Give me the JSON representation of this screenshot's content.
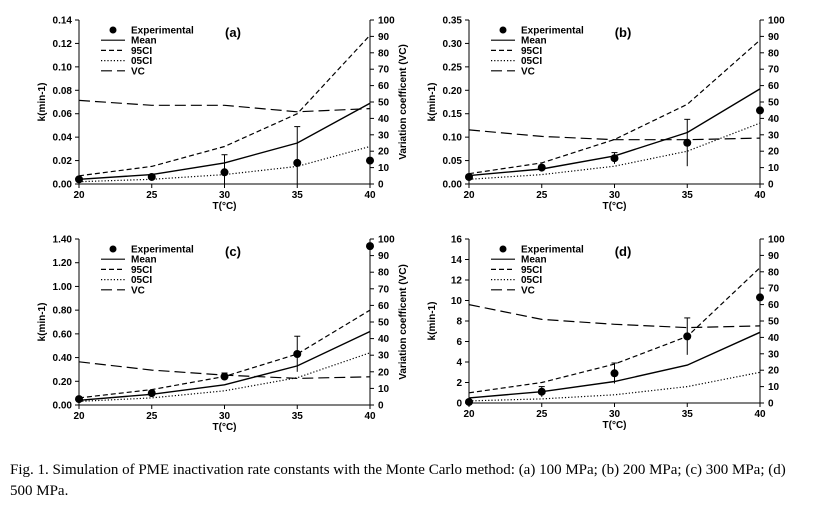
{
  "caption": "Fig. 1. Simulation of PME inactivation rate constants with the Monte Carlo method: (a) 100 MPa; (b) 200 MPa; (c) 300 MPa; (d) 500 MPa.",
  "legend_labels": [
    "Experimental",
    "Mean",
    "95CI",
    "05CI",
    "VC"
  ],
  "chart_data": [
    {
      "type": "line",
      "panel_label": "(a)",
      "xlabel": "T(°C)",
      "ylabel": "k(min-1)",
      "y2label": "Variation coefficent (VC)",
      "x": [
        20,
        25,
        30,
        35,
        40
      ],
      "xlim": [
        20,
        40
      ],
      "ylim": [
        0,
        0.14
      ],
      "y2lim": [
        0,
        100
      ],
      "yticks": [
        "0.00",
        "0.02",
        "0.04",
        "0.06",
        "0.08",
        "0.10",
        "0.12",
        "0.14"
      ],
      "y2ticks": [
        "0",
        "10",
        "20",
        "30",
        "40",
        "50",
        "60",
        "70",
        "80",
        "90",
        "100"
      ],
      "series": [
        {
          "name": "Experimental",
          "axis": "left",
          "style": "points",
          "values": [
            0.004,
            0.006,
            0.01,
            0.018,
            0.02
          ],
          "errors": [
            0.001,
            0.002,
            0.015,
            0.031,
            0.0
          ]
        },
        {
          "name": "Mean",
          "axis": "left",
          "style": "solid",
          "values": [
            0.004,
            0.008,
            0.018,
            0.035,
            0.069
          ]
        },
        {
          "name": "95CI",
          "axis": "left",
          "style": "dashed",
          "values": [
            0.007,
            0.015,
            0.032,
            0.06,
            0.127
          ]
        },
        {
          "name": "05CI",
          "axis": "left",
          "style": "dotted",
          "values": [
            0.002,
            0.004,
            0.008,
            0.015,
            0.032
          ]
        },
        {
          "name": "VC",
          "axis": "right",
          "style": "longdash",
          "values": [
            51,
            48,
            48,
            44,
            46
          ]
        }
      ]
    },
    {
      "type": "line",
      "panel_label": "(b)",
      "xlabel": "T(°C)",
      "ylabel": "k(min-1)",
      "y2label": "",
      "x": [
        20,
        25,
        30,
        35,
        40
      ],
      "xlim": [
        20,
        40
      ],
      "ylim": [
        0,
        0.35
      ],
      "y2lim": [
        0,
        100
      ],
      "yticks": [
        "0.00",
        "0.05",
        "0.10",
        "0.15",
        "0.20",
        "0.25",
        "0.30",
        "0.35"
      ],
      "y2ticks": [
        "0",
        "10",
        "20",
        "30",
        "40",
        "50",
        "60",
        "70",
        "80",
        "90",
        "100"
      ],
      "series": [
        {
          "name": "Experimental",
          "axis": "left",
          "style": "points",
          "values": [
            0.015,
            0.035,
            0.055,
            0.088,
            0.157
          ],
          "errors": [
            0.002,
            0.005,
            0.012,
            0.05,
            0.0
          ]
        },
        {
          "name": "Mean",
          "axis": "left",
          "style": "solid",
          "values": [
            0.018,
            0.032,
            0.06,
            0.11,
            0.203
          ]
        },
        {
          "name": "95CI",
          "axis": "left",
          "style": "dashed",
          "values": [
            0.022,
            0.045,
            0.095,
            0.17,
            0.307
          ]
        },
        {
          "name": "05CI",
          "axis": "left",
          "style": "dotted",
          "values": [
            0.01,
            0.02,
            0.038,
            0.07,
            0.13
          ]
        },
        {
          "name": "VC",
          "axis": "right",
          "style": "longdash",
          "values": [
            33,
            29,
            27,
            27,
            28
          ]
        }
      ]
    },
    {
      "type": "line",
      "panel_label": "(c)",
      "xlabel": "T(°C)",
      "ylabel": "k(min-1)",
      "y2label": "Variation coefficent (VC)",
      "x": [
        20,
        25,
        30,
        35,
        40
      ],
      "xlim": [
        20,
        40
      ],
      "ylim": [
        0,
        1.4
      ],
      "y2lim": [
        0,
        100
      ],
      "yticks": [
        "0.00",
        "0.20",
        "0.40",
        "0.60",
        "0.80",
        "1.00",
        "1.20",
        "1.40"
      ],
      "y2ticks": [
        "0",
        "10",
        "20",
        "30",
        "40",
        "50",
        "60",
        "70",
        "80",
        "90",
        "100"
      ],
      "series": [
        {
          "name": "Experimental",
          "axis": "left",
          "style": "points",
          "values": [
            0.05,
            0.1,
            0.24,
            0.43,
            1.34
          ],
          "errors": [
            0.01,
            0.02,
            0.03,
            0.15,
            0.0
          ]
        },
        {
          "name": "Mean",
          "axis": "left",
          "style": "solid",
          "values": [
            0.04,
            0.09,
            0.17,
            0.33,
            0.62
          ]
        },
        {
          "name": "95CI",
          "axis": "left",
          "style": "dashed",
          "values": [
            0.06,
            0.13,
            0.24,
            0.43,
            0.8
          ]
        },
        {
          "name": "05CI",
          "axis": "left",
          "style": "dotted",
          "values": [
            0.03,
            0.06,
            0.12,
            0.23,
            0.44
          ]
        },
        {
          "name": "VC",
          "axis": "right",
          "style": "longdash",
          "values": [
            26,
            21,
            18,
            16,
            17
          ]
        }
      ]
    },
    {
      "type": "line",
      "panel_label": "(d)",
      "xlabel": "T(°C)",
      "ylabel": "k(min-1)",
      "y2label": "",
      "x": [
        20,
        25,
        30,
        35,
        40
      ],
      "xlim": [
        20,
        40
      ],
      "ylim": [
        0,
        16
      ],
      "y2lim": [
        0,
        100
      ],
      "yticks": [
        "0",
        "2",
        "4",
        "6",
        "8",
        "10",
        "12",
        "14",
        "16"
      ],
      "y2ticks": [
        "0",
        "10",
        "20",
        "30",
        "40",
        "50",
        "60",
        "70",
        "80",
        "90",
        "100"
      ],
      "series": [
        {
          "name": "Experimental",
          "axis": "left",
          "style": "points",
          "values": [
            0.1,
            1.1,
            2.9,
            6.5,
            10.3
          ],
          "errors": [
            0.1,
            0.5,
            1.0,
            1.8,
            0.0
          ]
        },
        {
          "name": "Mean",
          "axis": "left",
          "style": "solid",
          "values": [
            0.5,
            1.1,
            2.1,
            3.7,
            6.9
          ]
        },
        {
          "name": "95CI",
          "axis": "left",
          "style": "dashed",
          "values": [
            1.0,
            2.0,
            3.8,
            6.5,
            13.2
          ]
        },
        {
          "name": "05CI",
          "axis": "left",
          "style": "dotted",
          "values": [
            0.2,
            0.4,
            0.8,
            1.6,
            3.0
          ]
        },
        {
          "name": "VC",
          "axis": "right",
          "style": "longdash",
          "values": [
            60,
            51,
            48,
            46,
            47
          ]
        }
      ]
    }
  ]
}
